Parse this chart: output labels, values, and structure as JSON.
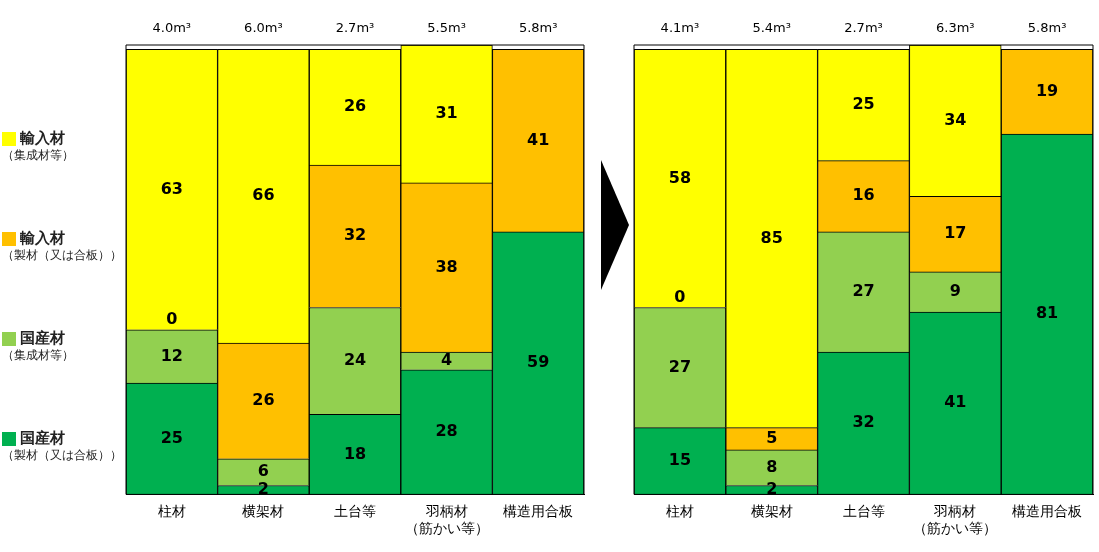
{
  "chart_data": [
    {
      "type": "bar",
      "stacked": true,
      "data_labels": true,
      "grid": false,
      "legend": "left",
      "tick_labels": "x",
      "categories": [
        "柱材",
        "横架材",
        "土台等",
        "羽柄材（筋かい等）",
        "構造用合板"
      ],
      "series": [
        {
          "name": "国産材（製材（又は合板））",
          "color": "#00b050",
          "values": [
            25,
            2,
            18,
            28,
            59
          ]
        },
        {
          "name": "国産材（集成材等）",
          "color": "#92d050",
          "values": [
            12,
            6,
            24,
            4,
            null
          ]
        },
        {
          "name": "輸入材（製材（又は合板））",
          "color": "#ffc000",
          "values": [
            0,
            26,
            32,
            38,
            41
          ]
        },
        {
          "name": "輸入材（集成材等）",
          "color": "#ffff00",
          "values": [
            63,
            66,
            26,
            31,
            null
          ]
        }
      ],
      "annotations": [
        "4.0m³",
        "6.0m³",
        "2.7m³",
        "5.5m³",
        "5.8m³"
      ]
    },
    {
      "type": "bar",
      "stacked": true,
      "data_labels": true,
      "grid": false,
      "tick_labels": "x",
      "categories": [
        "柱材",
        "横架材",
        "土台等",
        "羽柄材（筋かい等）",
        "構造用合板"
      ],
      "series": [
        {
          "color": "#00b050",
          "values": [
            15,
            2,
            32,
            41,
            81
          ]
        },
        {
          "color": "#92d050",
          "values": [
            27,
            8,
            27,
            9,
            null
          ]
        },
        {
          "color": "#ffc000",
          "values": [
            0,
            5,
            16,
            17,
            19
          ]
        },
        {
          "color": "#ffff00",
          "values": [
            58,
            85,
            25,
            34,
            null
          ]
        }
      ],
      "annotations": [
        "4.1m³",
        "5.4m³",
        "2.7m³",
        "6.3m³",
        "5.8m³"
      ]
    }
  ]
}
